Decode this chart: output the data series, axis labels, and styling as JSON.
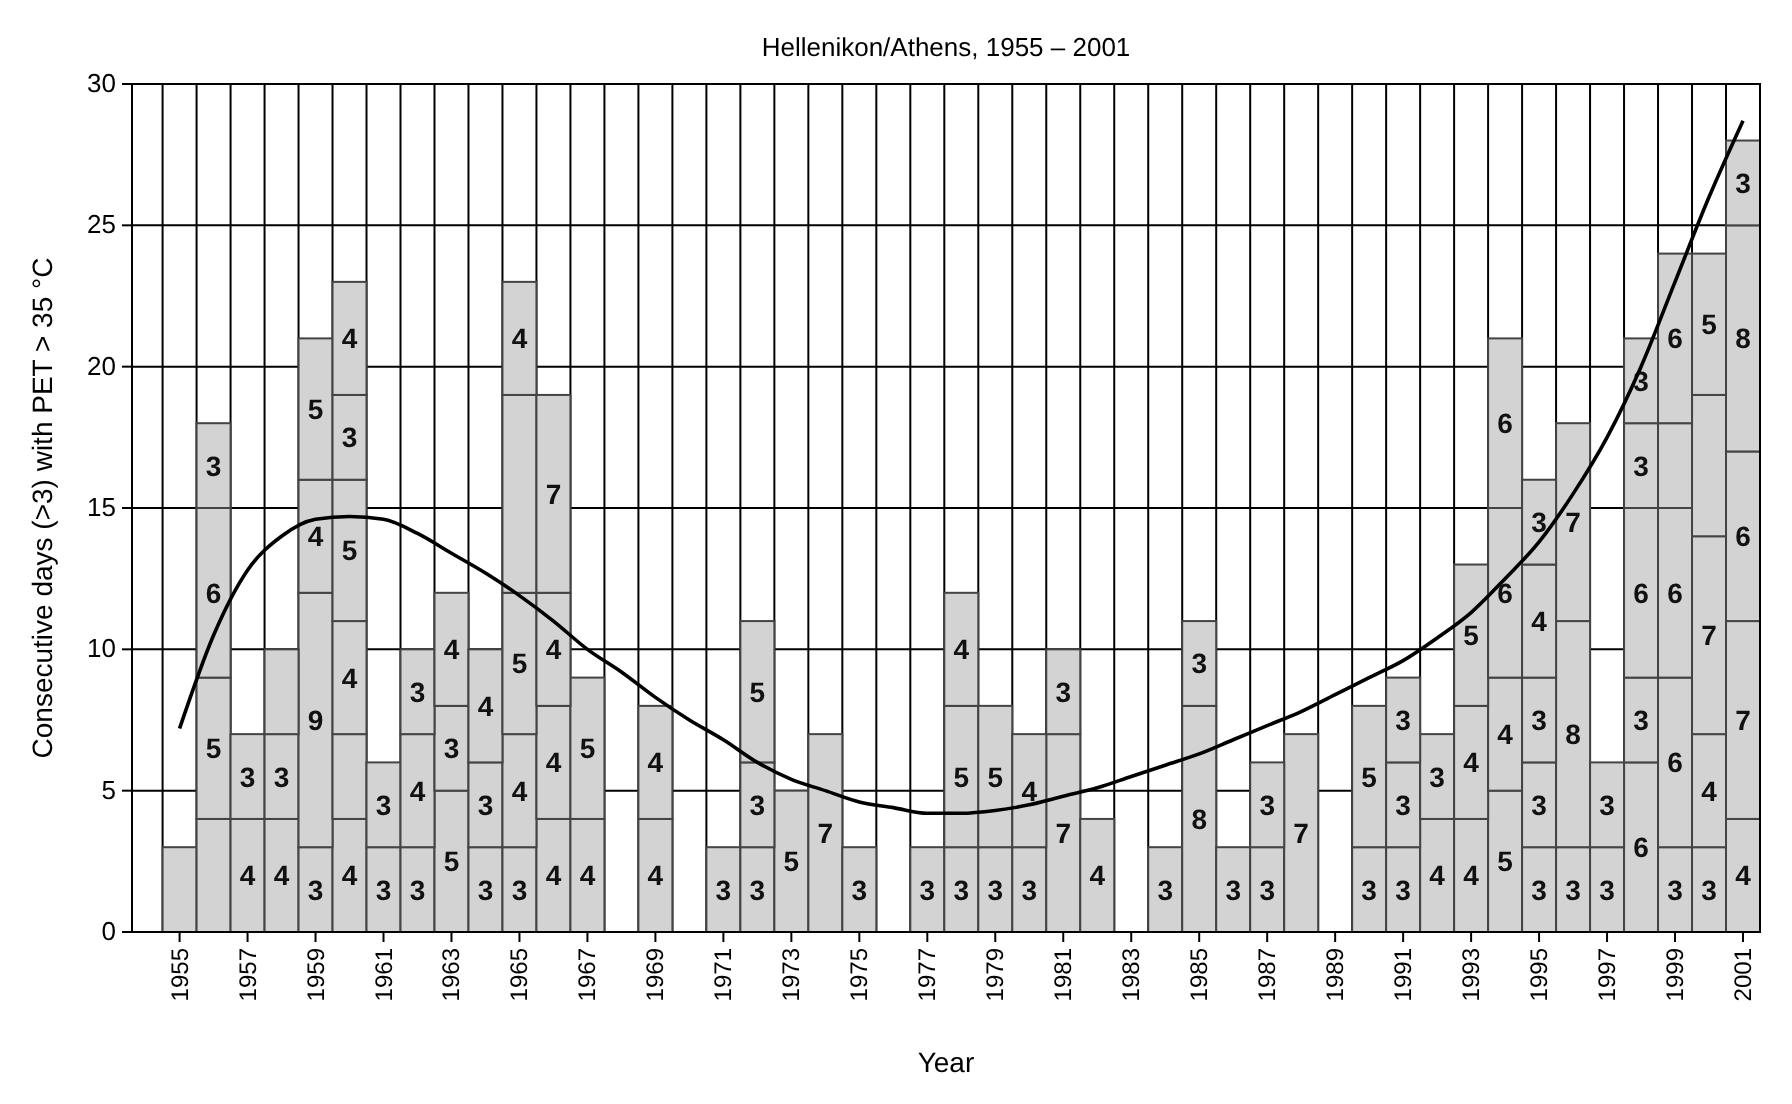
{
  "chart_data": {
    "type": "bar",
    "stacked": true,
    "title": "Hellenikon/Athens, 1955 – 2001",
    "xlabel": "Year",
    "ylabel": "Consecutive days (>3) with PET > 35 °C",
    "x": [
      1955,
      1956,
      1957,
      1958,
      1959,
      1960,
      1961,
      1962,
      1963,
      1964,
      1965,
      1966,
      1967,
      1968,
      1969,
      1970,
      1971,
      1972,
      1973,
      1974,
      1975,
      1976,
      1977,
      1978,
      1979,
      1980,
      1981,
      1982,
      1983,
      1984,
      1985,
      1986,
      1987,
      1988,
      1989,
      1990,
      1991,
      1992,
      1993,
      1994,
      1995,
      1996,
      1997,
      1998,
      1999,
      2000,
      2001
    ],
    "xlim": [
      1953.6,
      2001.5
    ],
    "xticks": [
      1955,
      1957,
      1959,
      1961,
      1963,
      1965,
      1967,
      1969,
      1971,
      1973,
      1975,
      1977,
      1979,
      1981,
      1983,
      1985,
      1987,
      1989,
      1991,
      1993,
      1995,
      1997,
      1999,
      2001
    ],
    "ylim": [
      0,
      30
    ],
    "yticks": [
      0,
      5,
      10,
      15,
      20,
      25,
      30
    ],
    "grid": true,
    "series": [
      {
        "color": "#d3d3d3",
        "values": [
          3,
          4,
          4,
          4,
          3,
          4,
          3,
          3,
          5,
          3,
          3,
          4,
          4,
          null,
          4,
          null,
          3,
          3,
          5,
          7,
          3,
          null,
          3,
          3,
          3,
          3,
          7,
          4,
          null,
          3,
          8,
          3,
          3,
          7,
          null,
          3,
          3,
          4,
          4,
          5,
          3,
          3,
          3,
          6,
          3,
          3,
          4
        ],
        "value_labels": [
          null,
          null,
          "4",
          "4",
          "3",
          "4",
          "3",
          "3",
          "5",
          "3",
          "3",
          "4",
          "4",
          null,
          "4",
          null,
          "3",
          "3",
          "5",
          "7",
          "3",
          null,
          "3",
          "3",
          "3",
          "3",
          "7",
          "4",
          null,
          "3",
          "8",
          "3",
          "3",
          "7",
          null,
          "3",
          "3",
          "4",
          "4",
          "5",
          "3",
          "3",
          "3",
          "6",
          "3",
          "3",
          "4"
        ]
      },
      {
        "color": "#d3d3d3",
        "values": [
          null,
          5,
          3,
          3,
          9,
          3,
          3,
          4,
          3,
          3,
          4,
          4,
          5,
          null,
          4,
          null,
          null,
          3,
          null,
          null,
          null,
          null,
          null,
          5,
          5,
          4,
          3,
          null,
          null,
          null,
          3,
          null,
          3,
          null,
          null,
          5,
          3,
          3,
          4,
          4,
          3,
          8,
          3,
          3,
          6,
          4,
          7
        ],
        "value_labels": [
          null,
          "5",
          "3",
          "3",
          "9",
          null,
          "3",
          "4",
          "3",
          "3",
          "4",
          "4",
          "5",
          null,
          "4",
          null,
          null,
          "3",
          null,
          null,
          null,
          null,
          null,
          "5",
          "5",
          "4",
          "3",
          null,
          null,
          null,
          "3",
          null,
          "3",
          null,
          null,
          "5",
          "3",
          "3",
          "4",
          "4",
          "3",
          "8",
          "3",
          "3",
          "6",
          "4",
          "7"
        ]
      },
      {
        "color": "#d3d3d3",
        "values": [
          null,
          6,
          null,
          3,
          4,
          4,
          null,
          3,
          4,
          4,
          5,
          4,
          null,
          null,
          null,
          null,
          null,
          5,
          null,
          null,
          null,
          null,
          null,
          4,
          null,
          null,
          null,
          null,
          null,
          null,
          null,
          null,
          null,
          null,
          null,
          null,
          3,
          null,
          5,
          6,
          3,
          7,
          null,
          6,
          6,
          7,
          6
        ],
        "value_labels": [
          null,
          "6",
          null,
          null,
          "4",
          "4",
          null,
          "3",
          "4",
          "4",
          "5",
          "4",
          null,
          null,
          null,
          null,
          null,
          "5",
          null,
          null,
          null,
          null,
          null,
          "4",
          null,
          null,
          null,
          null,
          null,
          null,
          null,
          null,
          null,
          null,
          null,
          null,
          "3",
          null,
          "5",
          "6",
          "3",
          "7",
          null,
          "6",
          "6",
          "7",
          "6"
        ]
      },
      {
        "color": "#d3d3d3",
        "values": [
          null,
          3,
          null,
          null,
          5,
          5,
          null,
          null,
          null,
          null,
          7,
          7,
          null,
          null,
          null,
          null,
          null,
          null,
          null,
          null,
          null,
          null,
          null,
          null,
          null,
          null,
          null,
          null,
          null,
          null,
          null,
          null,
          null,
          null,
          null,
          null,
          null,
          null,
          null,
          6,
          4,
          null,
          null,
          3,
          3,
          5,
          8
        ],
        "value_labels": [
          null,
          "3",
          null,
          null,
          "5",
          "5",
          null,
          null,
          null,
          null,
          null,
          "7",
          null,
          null,
          null,
          null,
          null,
          null,
          null,
          null,
          null,
          null,
          null,
          null,
          null,
          null,
          null,
          null,
          null,
          null,
          null,
          null,
          null,
          null,
          null,
          null,
          null,
          null,
          null,
          "6",
          "4",
          null,
          null,
          "3",
          null,
          null,
          "8"
        ]
      },
      {
        "color": "#d3d3d3",
        "values": [
          null,
          null,
          null,
          null,
          null,
          3,
          null,
          null,
          null,
          null,
          4,
          null,
          null,
          null,
          null,
          null,
          null,
          null,
          null,
          null,
          null,
          null,
          null,
          null,
          null,
          null,
          null,
          null,
          null,
          null,
          null,
          null,
          null,
          null,
          null,
          null,
          null,
          null,
          null,
          null,
          3,
          null,
          null,
          3,
          6,
          5,
          3
        ],
        "value_labels": [
          null,
          null,
          null,
          null,
          null,
          "3",
          null,
          null,
          null,
          null,
          "4",
          null,
          null,
          null,
          null,
          null,
          null,
          null,
          null,
          null,
          null,
          null,
          null,
          null,
          null,
          null,
          null,
          null,
          null,
          null,
          null,
          null,
          null,
          null,
          null,
          null,
          null,
          null,
          null,
          null,
          "3",
          null,
          null,
          "3",
          "6",
          "5",
          "3"
        ]
      },
      {
        "color": "#d3d3d3",
        "values": [
          null,
          null,
          null,
          null,
          null,
          4,
          null,
          null,
          null,
          null,
          null,
          null,
          null,
          null,
          null,
          null,
          null,
          null,
          null,
          null,
          null,
          null,
          null,
          null,
          null,
          null,
          null,
          null,
          null,
          null,
          null,
          null,
          null,
          null,
          null,
          null,
          null,
          null,
          null,
          null,
          null,
          null,
          null,
          null,
          null,
          null,
          null
        ],
        "value_labels": [
          null,
          null,
          null,
          null,
          null,
          "4",
          null,
          null,
          null,
          null,
          null,
          null,
          null,
          null,
          null,
          null,
          null,
          null,
          null,
          null,
          null,
          null,
          null,
          null,
          null,
          null,
          null,
          null,
          null,
          null,
          null,
          null,
          null,
          null,
          null,
          null,
          null,
          null,
          null,
          null,
          null,
          null,
          null,
          null,
          null,
          null,
          null
        ]
      },
      {
        "type": "line",
        "color": "#000000",
        "x": [
          1955,
          1956,
          1957,
          1958,
          1959,
          1960,
          1961,
          1962,
          1963,
          1964,
          1965,
          1966,
          1967,
          1968,
          1969,
          1970,
          1971,
          1972,
          1973,
          1974,
          1975,
          1976,
          1977,
          1978,
          1979,
          1980,
          1981,
          1982,
          1983,
          1984,
          1985,
          1986,
          1987,
          1988,
          1989,
          1990,
          1991,
          1992,
          1993,
          1994,
          1995,
          1996,
          1997,
          1998,
          1999,
          2000,
          2001
        ],
        "values": [
          7.2,
          10.5,
          12.8,
          14.0,
          14.6,
          14.7,
          14.6,
          14.1,
          13.4,
          12.7,
          11.9,
          11,
          10,
          9.2,
          8.3,
          7.5,
          6.8,
          6,
          5.4,
          5,
          4.6,
          4.4,
          4.2,
          4.2,
          4.3,
          4.5,
          4.8,
          5.1,
          5.5,
          5.9,
          6.3,
          6.8,
          7.3,
          7.8,
          8.4,
          9,
          9.6,
          10.4,
          11.3,
          12.5,
          13.8,
          15.5,
          17.5,
          20,
          23,
          26,
          28.7
        ]
      }
    ]
  }
}
